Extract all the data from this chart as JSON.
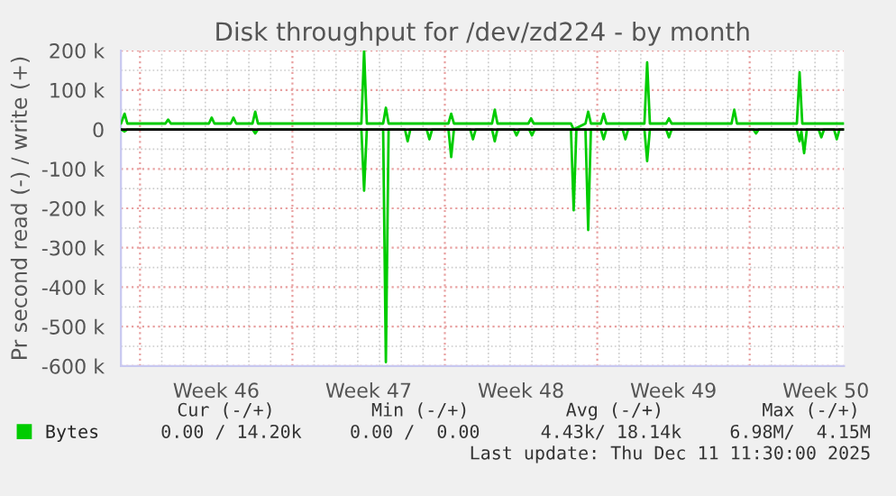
{
  "chart_data": {
    "type": "line",
    "title": "Disk throughput for /dev/zd224 - by month",
    "ylabel": "Pr second read (-) / write (+)",
    "xlim": [
      "2025-11-09T03:00",
      "2025-12-12T08:00"
    ],
    "ylim": [
      -600000,
      200000
    ],
    "xticks": [
      {
        "value": "2025-11-10",
        "label": null
      },
      {
        "value": "2025-11-13T12:00",
        "label": "Week 46"
      },
      {
        "value": "2025-11-17",
        "label": null
      },
      {
        "value": "2025-11-20T12:00",
        "label": "Week 47"
      },
      {
        "value": "2025-11-24",
        "label": null
      },
      {
        "value": "2025-11-27T12:00",
        "label": "Week 48"
      },
      {
        "value": "2025-12-01",
        "label": null
      },
      {
        "value": "2025-12-04T12:00",
        "label": "Week 49"
      },
      {
        "value": "2025-12-08",
        "label": null
      },
      {
        "value": "2025-12-11T12:00",
        "label": "Week 50"
      }
    ],
    "yticks": [
      {
        "value": 200000,
        "label": "200 k"
      },
      {
        "value": 100000,
        "label": "100 k"
      },
      0,
      {
        "value": -100000,
        "label": "-100 k"
      },
      {
        "value": -200000,
        "label": "-200 k"
      },
      {
        "value": -300000,
        "label": "-300 k"
      },
      {
        "value": -400000,
        "label": "-400 k"
      },
      {
        "value": -500000,
        "label": "-500 k"
      },
      {
        "value": -600000,
        "label": "-600 k"
      }
    ],
    "grid": true,
    "legend": "bottom",
    "marker": "none",
    "line_style": "solid",
    "ref_lines": [
      {
        "axis": "y",
        "value": 0,
        "color": "#000000"
      }
    ],
    "series": [
      {
        "name": "Bytes",
        "color": "#00cc00",
        "x": [
          "2025-11-09T03:00",
          "2025-11-09T07:00",
          "2025-11-09T10:00",
          "2025-11-11T04:00",
          "2025-11-11T07:00",
          "2025-11-11T10:00",
          "2025-11-13T04:00",
          "2025-11-13T07:00",
          "2025-11-13T10:00",
          "2025-11-14T04:00",
          "2025-11-14T07:00",
          "2025-11-14T10:00",
          "2025-11-15T04:00",
          "2025-11-15T07:00",
          "2025-11-15T10:00",
          "2025-11-20T04:00",
          "2025-11-20T07:00",
          "2025-11-20T10:00",
          "2025-11-21T04:00",
          "2025-11-21T07:00",
          "2025-11-21T10:00",
          "2025-11-24T04:00",
          "2025-11-24T07:00",
          "2025-11-24T10:00",
          "2025-11-26T04:00",
          "2025-11-26T07:00",
          "2025-11-26T10:00",
          "2025-11-27T20:00",
          "2025-11-27T23:00",
          "2025-11-28T02:00",
          "2025-11-29T19:00",
          "2025-11-29T22:00",
          "2025-11-30T11:00",
          "2025-11-30T14:00",
          "2025-11-30T17:00",
          "2025-12-01T04:00",
          "2025-12-01T07:00",
          "2025-12-01T10:00",
          "2025-12-03T04:00",
          "2025-12-03T07:00",
          "2025-12-03T10:00",
          "2025-12-04T04:00",
          "2025-12-04T07:00",
          "2025-12-04T10:00",
          "2025-12-07T04:00",
          "2025-12-07T07:00",
          "2025-12-07T10:00",
          "2025-12-10T04:00",
          "2025-12-10T07:00",
          "2025-12-10T10:00",
          "2025-12-12T08:00"
        ],
        "values": [
          15000,
          40000,
          15000,
          15000,
          25000,
          15000,
          15000,
          30000,
          15000,
          15000,
          30000,
          15000,
          15000,
          45000,
          15000,
          15000,
          200000,
          15000,
          15000,
          55000,
          15000,
          15000,
          40000,
          15000,
          15000,
          50000,
          15000,
          15000,
          28000,
          15000,
          15000,
          0,
          15000,
          45000,
          15000,
          15000,
          40000,
          15000,
          15000,
          170000,
          15000,
          15000,
          28000,
          15000,
          15000,
          50000,
          15000,
          15000,
          145000,
          15000,
          15000
        ]
      },
      {
        "color": "#00cc00",
        "x": [
          "2025-11-09T03:00",
          "2025-11-09T07:00",
          "2025-11-09T10:00",
          "2025-11-15T04:00",
          "2025-11-15T07:00",
          "2025-11-15T10:00",
          "2025-11-20T04:00",
          "2025-11-20T07:00",
          "2025-11-20T10:00",
          "2025-11-21T04:00",
          "2025-11-21T07:00",
          "2025-11-21T10:00",
          "2025-11-22T04:00",
          "2025-11-22T07:00",
          "2025-11-22T10:00",
          "2025-11-23T04:00",
          "2025-11-23T07:00",
          "2025-11-23T10:00",
          "2025-11-24T04:00",
          "2025-11-24T07:00",
          "2025-11-24T10:00",
          "2025-11-25T04:00",
          "2025-11-25T07:00",
          "2025-11-25T10:00",
          "2025-11-26T04:00",
          "2025-11-26T07:00",
          "2025-11-26T10:00",
          "2025-11-27T04:00",
          "2025-11-27T07:00",
          "2025-11-27T10:00",
          "2025-11-27T21:00",
          "2025-11-28T00:00",
          "2025-11-28T03:00",
          "2025-11-29T19:00",
          "2025-11-29T22:00",
          "2025-11-30T01:00",
          "2025-11-30T11:00",
          "2025-11-30T14:00",
          "2025-11-30T17:00",
          "2025-12-01T04:00",
          "2025-12-01T07:00",
          "2025-12-01T10:00",
          "2025-12-02T04:00",
          "2025-12-02T07:00",
          "2025-12-02T10:00",
          "2025-12-03T04:00",
          "2025-12-03T07:00",
          "2025-12-03T10:00",
          "2025-12-04T04:00",
          "2025-12-04T07:00",
          "2025-12-04T10:00",
          "2025-12-08T04:00",
          "2025-12-08T07:00",
          "2025-12-08T10:00",
          "2025-12-10T04:00",
          "2025-12-10T07:00",
          "2025-12-10T09:00",
          "2025-12-10T12:00",
          "2025-12-10T15:00",
          "2025-12-11T04:00",
          "2025-12-11T07:00",
          "2025-12-11T10:00",
          "2025-12-11T21:00",
          "2025-12-12T00:00",
          "2025-12-12T03:00",
          "2025-12-12T08:00"
        ],
        "values": [
          0,
          -5000,
          0,
          0,
          -10000,
          0,
          0,
          -155000,
          0,
          0,
          -590000,
          0,
          0,
          -30000,
          0,
          0,
          -25000,
          0,
          0,
          -70000,
          0,
          0,
          -25000,
          0,
          0,
          -30000,
          0,
          0,
          -15000,
          0,
          0,
          -15000,
          0,
          0,
          -205000,
          0,
          0,
          -255000,
          0,
          0,
          -25000,
          0,
          0,
          -25000,
          0,
          0,
          -80000,
          0,
          0,
          -20000,
          0,
          0,
          -10000,
          0,
          0,
          -30000,
          -5000,
          -60000,
          0,
          0,
          -20000,
          0,
          0,
          -25000,
          0,
          0
        ]
      }
    ],
    "annotations": [
      "Cur (-/+)",
      "Min (-/+)",
      "Avg (-/+)",
      "Max (-/+)",
      "0.00 / 14.20k",
      "0.00 /  0.00",
      "4.43k/ 18.14k",
      "6.98M/  4.15M",
      "Last update: Thu Dec 11 11:30:00 2025"
    ]
  }
}
